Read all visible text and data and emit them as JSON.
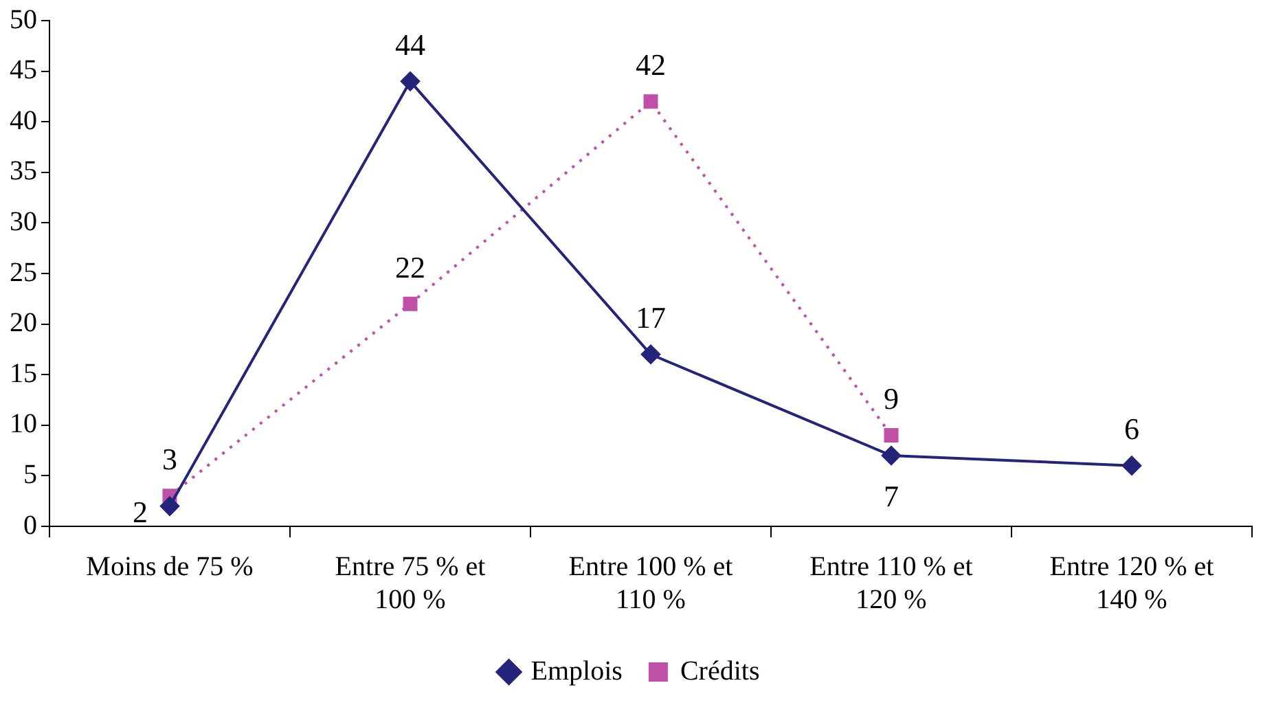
{
  "chart_data": {
    "type": "line",
    "categories": [
      "Moins de 75 %",
      "Entre 75 % et 100 %",
      "Entre 100 % et 110 %",
      "Entre 110 % et 120 %",
      "Entre 120 % et 140 %"
    ],
    "series": [
      {
        "name": "Emplois",
        "color": "#24247a",
        "values": [
          2,
          44,
          17,
          7,
          6
        ],
        "marker": "diamond",
        "line_style": "solid"
      },
      {
        "name": "Crédits",
        "color": "#c04fa8",
        "values": [
          3,
          22,
          42,
          9,
          null
        ],
        "marker": "square",
        "line_style": "dotted"
      }
    ],
    "ylim": [
      0,
      50
    ],
    "yticks": [
      0,
      5,
      10,
      15,
      20,
      25,
      30,
      35,
      40,
      45,
      50
    ],
    "grid": false,
    "legend": "bottom",
    "data_labels": true
  }
}
